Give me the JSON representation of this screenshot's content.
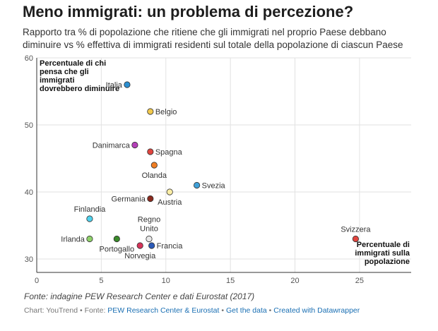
{
  "header": {
    "title": "Meno immigrati: un problema di percezione?",
    "subtitle": "Rapporto tra % di popolazione che ritiene che gli immigrati nel proprio Paese debbano diminuire vs % effettiva di immigrati residenti sul totale della popolazione di ciascun Paese"
  },
  "chart_data": {
    "type": "scatter",
    "xlim": [
      0,
      29
    ],
    "ylim": [
      28,
      60
    ],
    "x_ticks": [
      0,
      5,
      10,
      15,
      20,
      25
    ],
    "y_ticks": [
      30,
      40,
      50,
      60
    ],
    "grid": true,
    "xlabel": [
      "Percentuale di",
      "immigrati sulla",
      "popolazione"
    ],
    "ylabel": [
      "Percentuale di chi",
      "pensa che gli",
      "immigrati",
      "dovrebbero diminuire"
    ],
    "points": [
      {
        "label": "Italia",
        "x": 7.0,
        "y": 56.0,
        "color": "#2b8fd1",
        "label_pos": "left"
      },
      {
        "label": "Belgio",
        "x": 8.8,
        "y": 52.0,
        "color": "#f2c94c",
        "label_pos": "right"
      },
      {
        "label": "Danimarca",
        "x": 7.6,
        "y": 47.0,
        "color": "#b43fb8",
        "label_pos": "left"
      },
      {
        "label": "Spagna",
        "x": 8.8,
        "y": 46.0,
        "color": "#e0443e",
        "label_pos": "right"
      },
      {
        "label": "Olanda",
        "x": 9.1,
        "y": 44.0,
        "color": "#ef7d22",
        "label_pos": "below"
      },
      {
        "label": "Svezia",
        "x": 12.4,
        "y": 41.0,
        "color": "#3fa0d8",
        "label_pos": "right"
      },
      {
        "label": "Austria",
        "x": 10.3,
        "y": 40.0,
        "color": "#fbeea6",
        "label_pos": "below"
      },
      {
        "label": "Germania",
        "x": 8.8,
        "y": 39.0,
        "color": "#8a2a1e",
        "label_pos": "left"
      },
      {
        "label": "Finlandia",
        "x": 4.1,
        "y": 36.0,
        "color": "#4fd3ee",
        "label_pos": "above"
      },
      {
        "label": "Irlanda",
        "x": 4.1,
        "y": 33.0,
        "color": "#8fd16a",
        "label_pos": "left"
      },
      {
        "label": "Portogallo",
        "x": 6.2,
        "y": 33.0,
        "color": "#3a8a2a",
        "label_pos": "below"
      },
      {
        "label": "Regno Unito",
        "x": 8.7,
        "y": 33.0,
        "color": "#e8e8e8",
        "label_pos": "above2"
      },
      {
        "label": "Francia",
        "x": 8.9,
        "y": 32.0,
        "color": "#2a5ab8",
        "label_pos": "right"
      },
      {
        "label": "Norvegia",
        "x": 8.0,
        "y": 32.0,
        "color": "#d6345a",
        "label_pos": "below"
      },
      {
        "label": "Svizzera",
        "x": 24.7,
        "y": 33.0,
        "color": "#e0443e",
        "label_pos": "above"
      }
    ]
  },
  "footer": {
    "source": "Fonte: indagine PEW Research Center e dati Eurostat (2017)",
    "credit_prefix": "Chart: YouTrend • Fonte: ",
    "source_link": "PEW Research Center & Eurostat",
    "sep": " • ",
    "get_data": "Get the data",
    "created_with": "Created with Datawrapper"
  }
}
